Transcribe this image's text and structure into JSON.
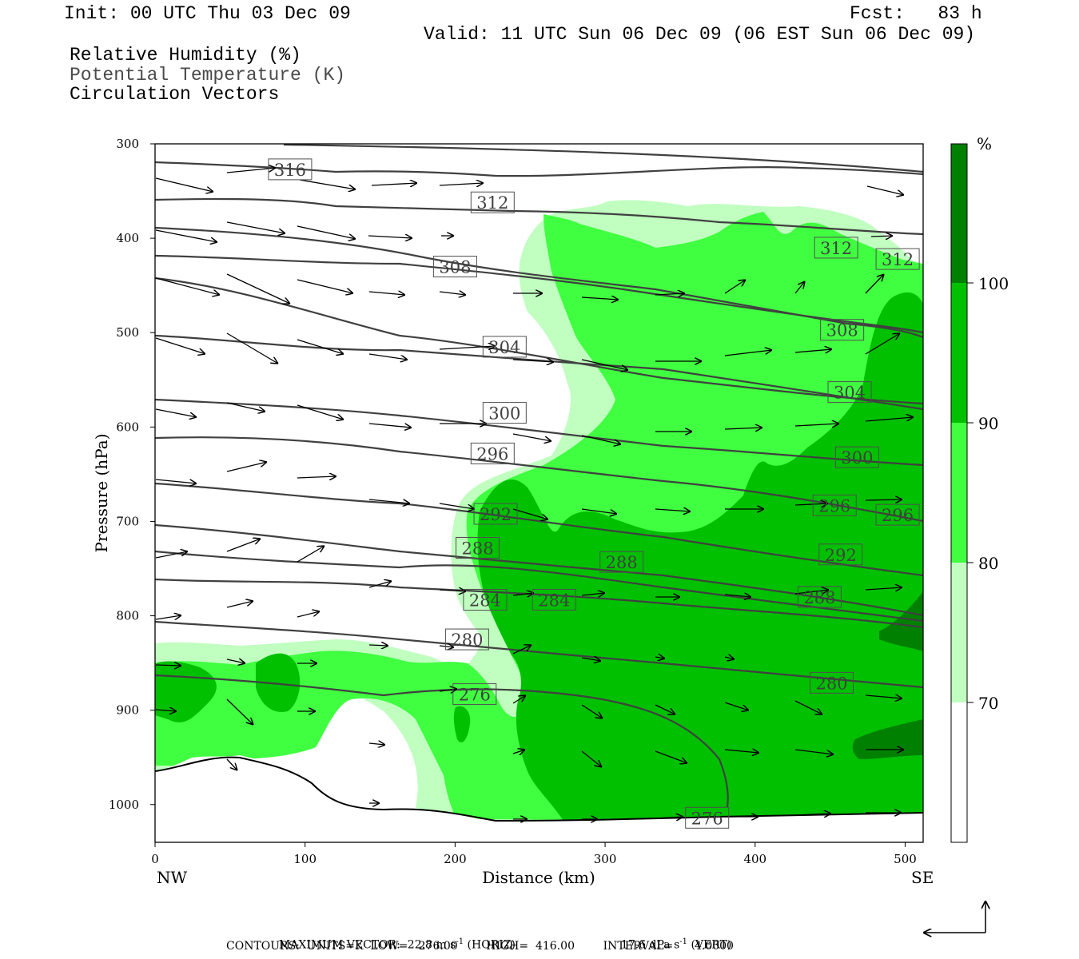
{
  "header": {
    "init": "Init: 00 UTC Thu 03 Dec 09",
    "fcst": "Fcst:   83 h",
    "valid": "Valid: 11 UTC Sun 06 Dec 09 (06 EST Sun 06 Dec 09)"
  },
  "fields": {
    "rh": "Relative Humidity (%)",
    "theta": "Potential Temperature (K)",
    "vectors": "Circulation Vectors"
  },
  "chart_data": {
    "type": "cross-section",
    "xlabel": "Distance (km)",
    "ylabel": "Pressure (hPa)",
    "xlim": [
      0,
      512
    ],
    "ylim": [
      1040,
      300
    ],
    "x_ticks": [
      "0",
      "100",
      "200",
      "300",
      "400",
      "500"
    ],
    "y_ticks": [
      "300",
      "400",
      "500",
      "600",
      "700",
      "800",
      "900",
      "1000"
    ],
    "x_end_labels": {
      "left": "NW",
      "right": "SE"
    },
    "colorbar": {
      "unit": "%",
      "levels": [
        "70",
        "80",
        "90",
        "100"
      ],
      "colors": [
        "#ffffff",
        "#c0ffc0",
        "#40ff40",
        "#00c000",
        "#008000"
      ]
    },
    "theta_contours": [
      {
        "label": "316",
        "x": 90,
        "p": 327
      },
      {
        "label": "312",
        "x": 225,
        "p": 362
      },
      {
        "label": "312",
        "x": 454,
        "p": 410
      },
      {
        "label": "312",
        "x": 495,
        "p": 422
      },
      {
        "label": "308",
        "x": 200,
        "p": 430
      },
      {
        "label": "308",
        "x": 458,
        "p": 497
      },
      {
        "label": "304",
        "x": 233,
        "p": 515
      },
      {
        "label": "304",
        "x": 463,
        "p": 563
      },
      {
        "label": "300",
        "x": 233,
        "p": 585
      },
      {
        "label": "300",
        "x": 468,
        "p": 632
      },
      {
        "label": "296",
        "x": 225,
        "p": 628
      },
      {
        "label": "296",
        "x": 453,
        "p": 683
      },
      {
        "label": "296",
        "x": 495,
        "p": 693
      },
      {
        "label": "292",
        "x": 227,
        "p": 692
      },
      {
        "label": "292",
        "x": 457,
        "p": 735
      },
      {
        "label": "288",
        "x": 215,
        "p": 728
      },
      {
        "label": "288",
        "x": 311,
        "p": 743
      },
      {
        "label": "284",
        "x": 220,
        "p": 783
      },
      {
        "label": "284",
        "x": 266,
        "p": 783
      },
      {
        "label": "288",
        "x": 443,
        "p": 780
      },
      {
        "label": "280",
        "x": 208,
        "p": 825
      },
      {
        "label": "280",
        "x": 451,
        "p": 871
      },
      {
        "label": "276",
        "x": 213,
        "p": 883
      },
      {
        "label": "276",
        "x": 368,
        "p": 1014
      }
    ],
    "footer_max_vector": "MAXIMUM VECTOR:  22.8 m s",
    "footer_horiz": " (HORIZ)",
    "footer_vert_val": "17.6 dPa s",
    "footer_vert": " (VERT)",
    "footer_exp": "-1",
    "footer_contours": "CONTOURS:  UNITS=K  LOW=   276.00        HIGH=  416.00        INTERVAL=      4.0000"
  }
}
